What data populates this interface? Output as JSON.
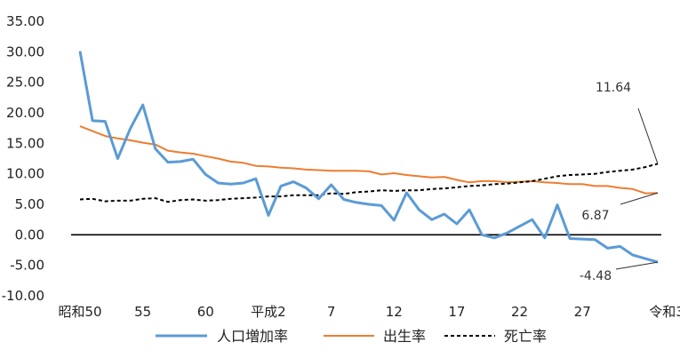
{
  "chart_data": {
    "type": "line",
    "title": "",
    "xlabel": "",
    "ylabel": "",
    "ylim": [
      -10,
      35
    ],
    "y_ticks": [
      "-10.00",
      "-5.00",
      "0.00",
      "5.00",
      "10.00",
      "15.00",
      "20.00",
      "25.00",
      "30.00",
      "35.00"
    ],
    "x_tick_labels": [
      {
        "index": 0,
        "label": "昭和50"
      },
      {
        "index": 5,
        "label": "55"
      },
      {
        "index": 10,
        "label": "60"
      },
      {
        "index": 15,
        "label": "平成2"
      },
      {
        "index": 20,
        "label": "7"
      },
      {
        "index": 25,
        "label": "12"
      },
      {
        "index": 30,
        "label": "17"
      },
      {
        "index": 35,
        "label": "22"
      },
      {
        "index": 40,
        "label": "27"
      },
      {
        "index": 46,
        "label": "令和3"
      }
    ],
    "x": [
      "昭和50",
      "昭和51",
      "昭和52",
      "昭和53",
      "昭和54",
      "昭和55",
      "昭和56",
      "昭和57",
      "昭和58",
      "昭和59",
      "昭和60",
      "昭和61",
      "昭和62",
      "昭和63",
      "平成元",
      "平成2",
      "平成3",
      "平成4",
      "平成5",
      "平成6",
      "平成7",
      "平成8",
      "平成9",
      "平成10",
      "平成11",
      "平成12",
      "平成13",
      "平成14",
      "平成15",
      "平成16",
      "平成17",
      "平成18",
      "平成19",
      "平成20",
      "平成21",
      "平成22",
      "平成23",
      "平成24",
      "平成25",
      "平成26",
      "平成27",
      "平成28",
      "平成29",
      "平成30",
      "令和元",
      "令和2",
      "令和3"
    ],
    "legend_position": "bottom",
    "series": [
      {
        "name": "人口増加率",
        "color": "#5B9BD5",
        "style": "solid",
        "values": [
          30.1,
          18.7,
          18.6,
          12.5,
          17.4,
          21.3,
          14.1,
          11.9,
          12.0,
          12.4,
          9.9,
          8.5,
          8.3,
          8.5,
          9.2,
          3.2,
          8.0,
          8.7,
          7.7,
          5.9,
          8.2,
          5.8,
          5.3,
          5.0,
          4.8,
          2.4,
          6.9,
          4.1,
          2.5,
          3.4,
          1.8,
          4.1,
          0.0,
          -0.5,
          0.3,
          1.4,
          2.5,
          -0.5,
          4.9,
          -0.6,
          -0.7,
          -0.8,
          -2.2,
          -1.9,
          -3.3,
          -3.9,
          -4.48
        ]
      },
      {
        "name": "出生率",
        "color": "#ED7D31",
        "style": "solid",
        "values": [
          17.8,
          17.0,
          16.2,
          15.8,
          15.5,
          15.1,
          14.8,
          13.8,
          13.5,
          13.3,
          12.9,
          12.5,
          12.0,
          11.8,
          11.3,
          11.2,
          11.0,
          10.9,
          10.7,
          10.6,
          10.5,
          10.5,
          10.5,
          10.4,
          9.9,
          10.1,
          9.8,
          9.6,
          9.4,
          9.5,
          9.0,
          8.6,
          8.8,
          8.8,
          8.6,
          8.7,
          8.8,
          8.6,
          8.5,
          8.3,
          8.3,
          8.0,
          8.0,
          7.7,
          7.5,
          6.8,
          6.87
        ]
      },
      {
        "name": "死亡率",
        "color": "#000000",
        "style": "dashed",
        "values": [
          5.8,
          5.9,
          5.5,
          5.6,
          5.6,
          5.9,
          6.0,
          5.4,
          5.7,
          5.8,
          5.6,
          5.7,
          5.9,
          6.0,
          6.1,
          6.3,
          6.3,
          6.5,
          6.5,
          6.5,
          6.8,
          6.7,
          7.0,
          7.1,
          7.3,
          7.2,
          7.3,
          7.3,
          7.5,
          7.6,
          7.8,
          8.0,
          8.1,
          8.3,
          8.4,
          8.6,
          8.8,
          9.2,
          9.6,
          9.8,
          9.9,
          10.0,
          10.3,
          10.5,
          10.7,
          11.1,
          11.64
        ]
      }
    ],
    "annotations": [
      {
        "text": "11.64",
        "series": 2
      },
      {
        "text": "6.87",
        "series": 1
      },
      {
        "text": "-4.48",
        "series": 0
      }
    ]
  }
}
